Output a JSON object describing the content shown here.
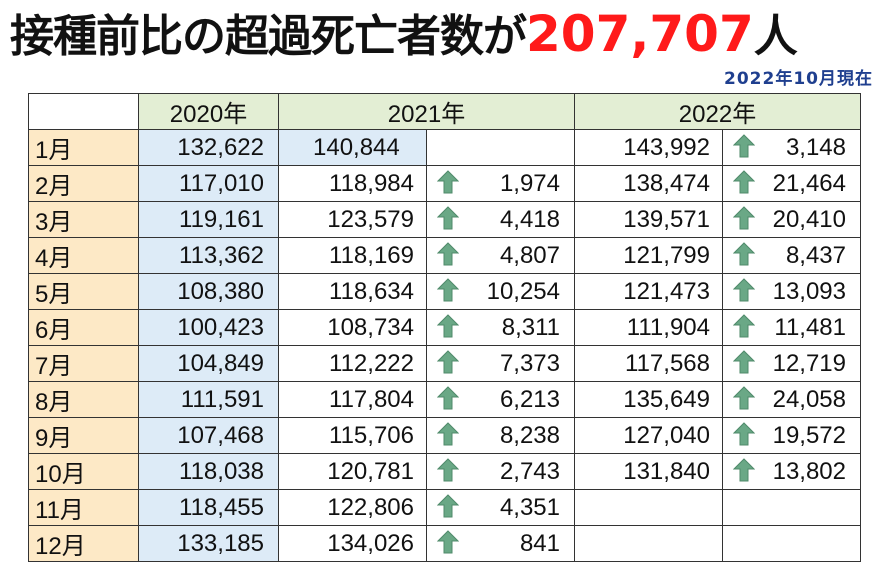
{
  "title": {
    "prefix": "接種前比の超過死亡者数が",
    "number": "207,707",
    "suffix": "人",
    "number_color": "#ff1a1a"
  },
  "as_of": "2022年10月現在",
  "colors": {
    "header_bg": "#e3eed4",
    "month_bg": "#fde9c6",
    "y2020_bg": "#ddebf7",
    "arrow": "#6aa886"
  },
  "headers": [
    "2020年",
    "2021年",
    "2022年"
  ],
  "rows": [
    {
      "month": "1月",
      "y2020": "132,622",
      "y2021": "140,844",
      "d2021": "",
      "y2022": "143,992",
      "d2022": "3,148"
    },
    {
      "month": "2月",
      "y2020": "117,010",
      "y2021": "118,984",
      "d2021": "1,974",
      "y2022": "138,474",
      "d2022": "21,464"
    },
    {
      "month": "3月",
      "y2020": "119,161",
      "y2021": "123,579",
      "d2021": "4,418",
      "y2022": "139,571",
      "d2022": "20,410"
    },
    {
      "month": "4月",
      "y2020": "113,362",
      "y2021": "118,169",
      "d2021": "4,807",
      "y2022": "121,799",
      "d2022": "8,437"
    },
    {
      "month": "5月",
      "y2020": "108,380",
      "y2021": "118,634",
      "d2021": "10,254",
      "y2022": "121,473",
      "d2022": "13,093"
    },
    {
      "month": "6月",
      "y2020": "100,423",
      "y2021": "108,734",
      "d2021": "8,311",
      "y2022": "111,904",
      "d2022": "11,481"
    },
    {
      "month": "7月",
      "y2020": "104,849",
      "y2021": "112,222",
      "d2021": "7,373",
      "y2022": "117,568",
      "d2022": "12,719"
    },
    {
      "month": "8月",
      "y2020": "111,591",
      "y2021": "117,804",
      "d2021": "6,213",
      "y2022": "135,649",
      "d2022": "24,058"
    },
    {
      "month": "9月",
      "y2020": "107,468",
      "y2021": "115,706",
      "d2021": "8,238",
      "y2022": "127,040",
      "d2022": "19,572"
    },
    {
      "month": "10月",
      "y2020": "118,038",
      "y2021": "120,781",
      "d2021": "2,743",
      "y2022": "131,840",
      "d2022": "13,802"
    },
    {
      "month": "11月",
      "y2020": "118,455",
      "y2021": "122,806",
      "d2021": "4,351",
      "y2022": "",
      "d2022": ""
    },
    {
      "month": "12月",
      "y2020": "133,185",
      "y2021": "134,026",
      "d2021": "841",
      "y2022": "",
      "d2022": ""
    }
  ]
}
